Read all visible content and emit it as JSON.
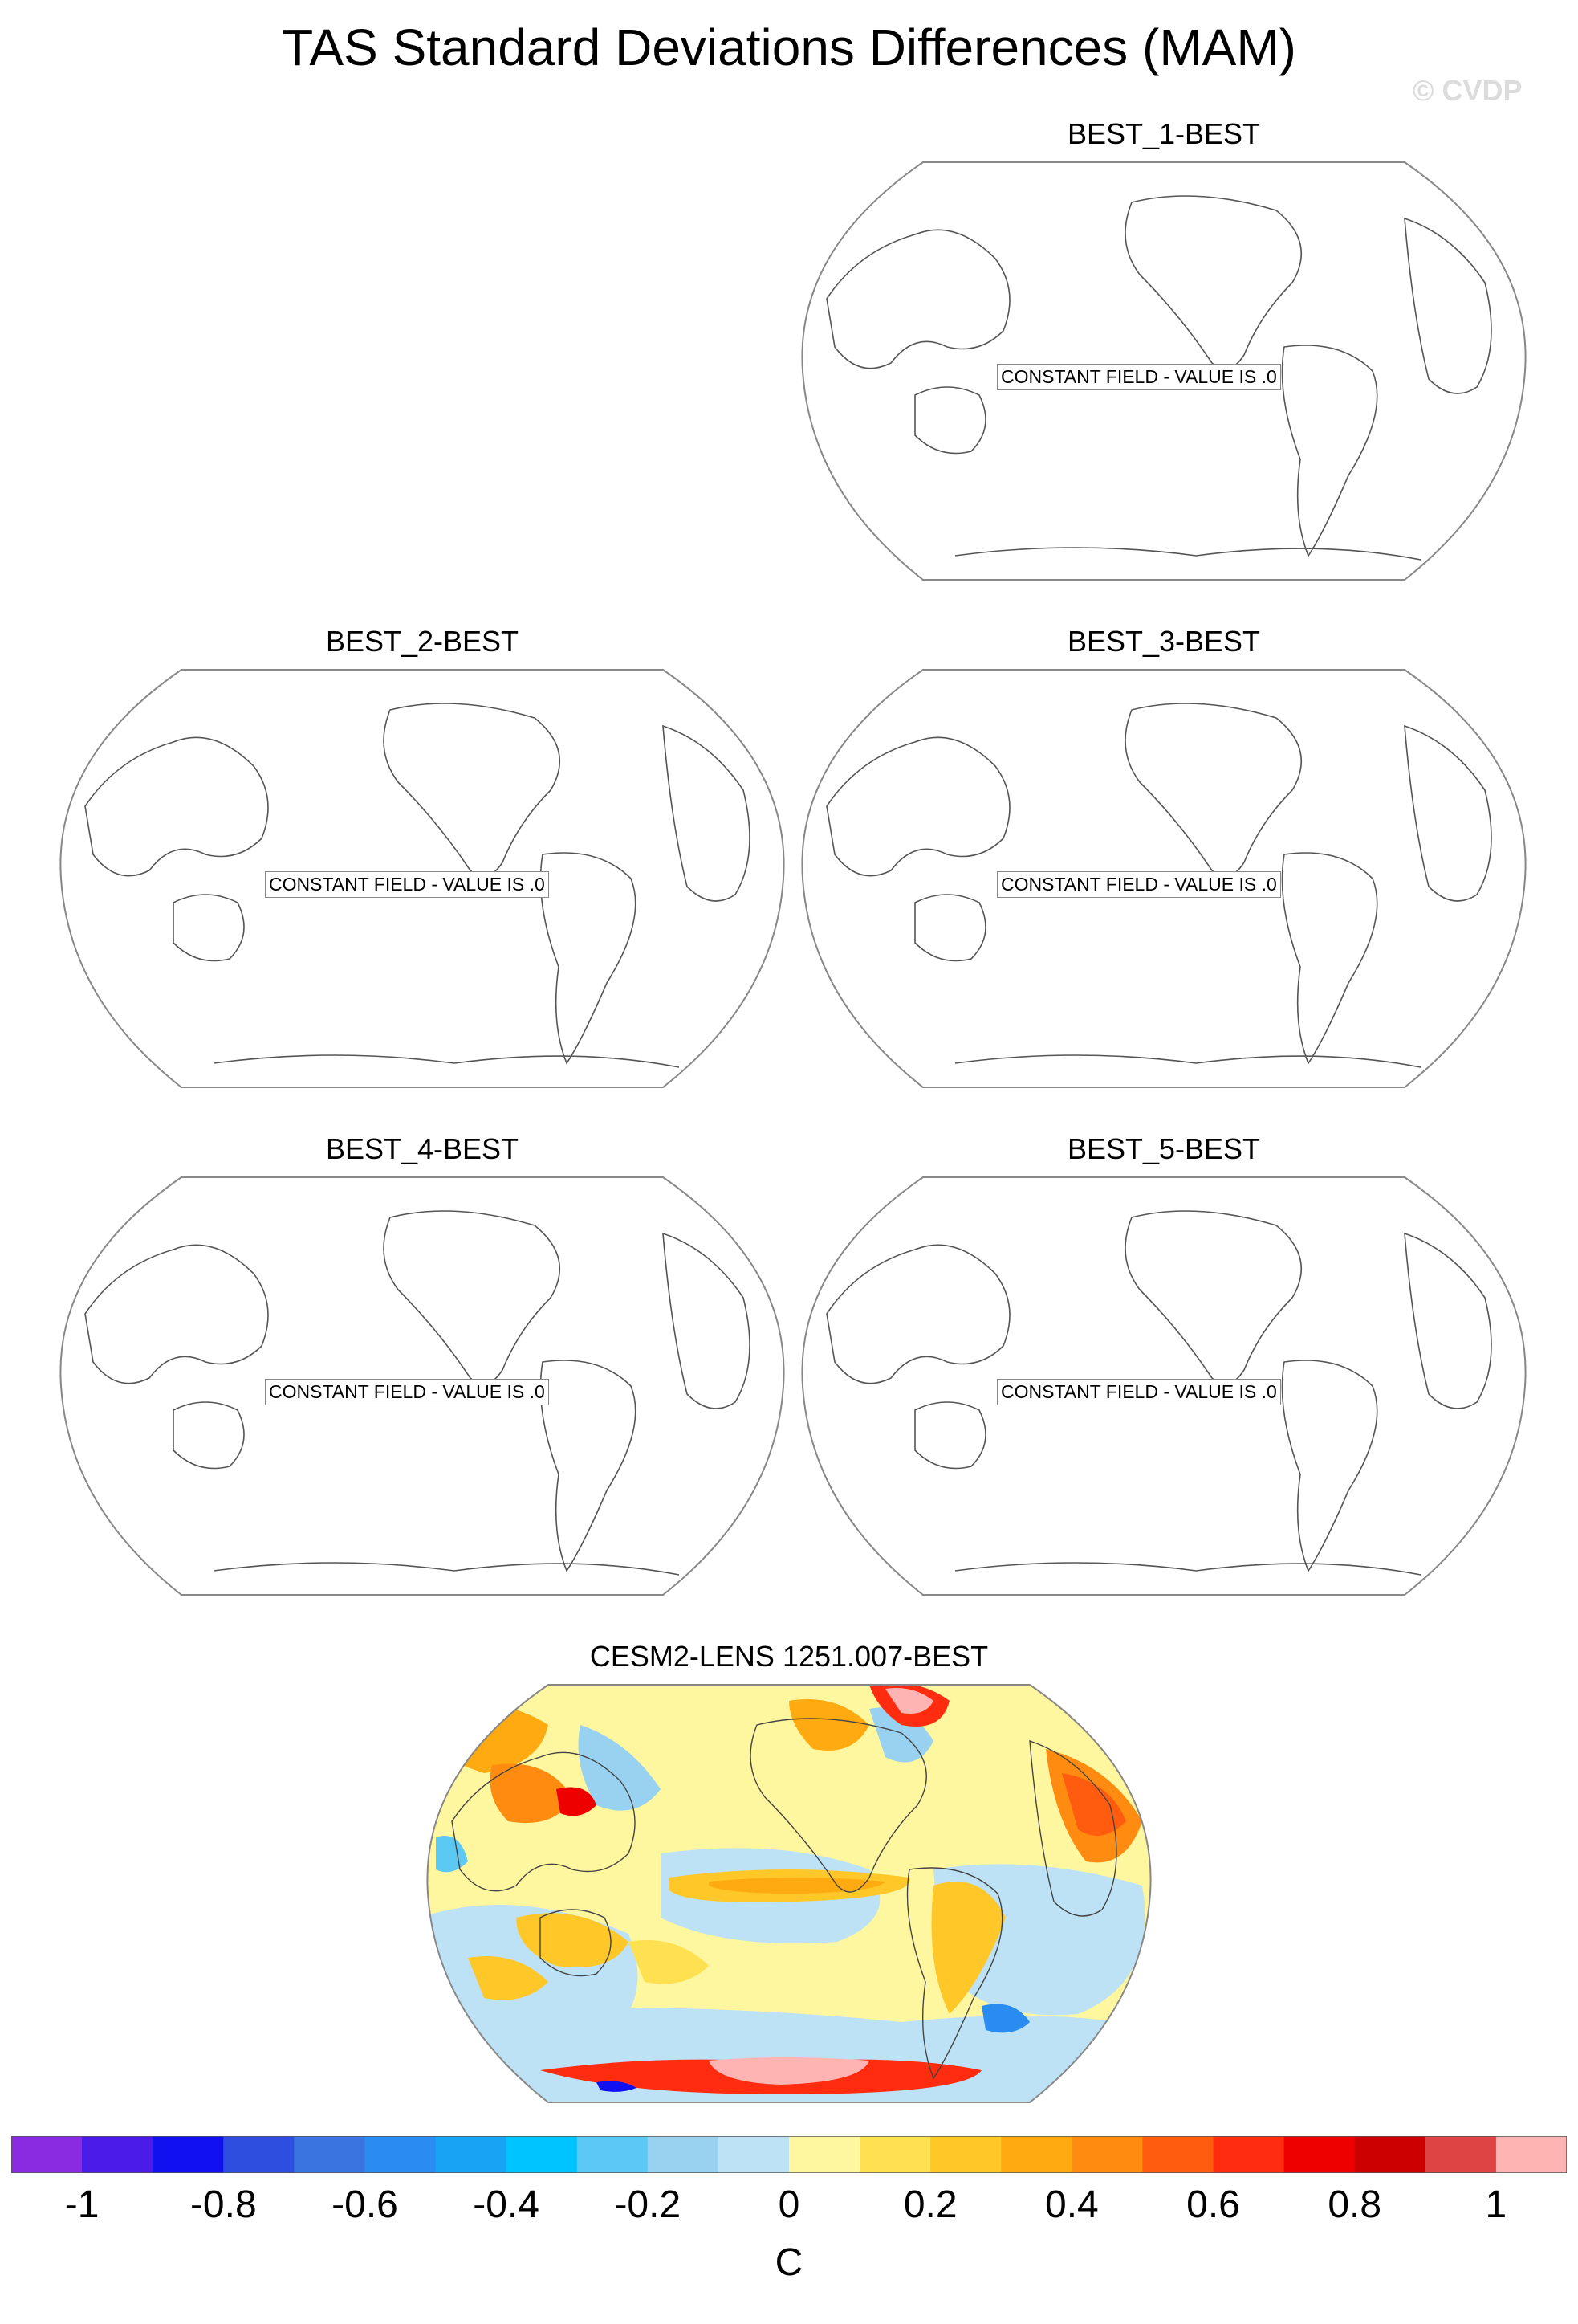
{
  "title": "TAS Standard Deviations Differences (MAM)",
  "watermark": "© CVDP",
  "panels": [
    {
      "label": "BEST_1-BEST",
      "message": "CONSTANT FIELD - VALUE IS .0"
    },
    {
      "label": "BEST_2-BEST",
      "message": "CONSTANT FIELD - VALUE IS .0"
    },
    {
      "label": "BEST_3-BEST",
      "message": "CONSTANT FIELD - VALUE IS .0"
    },
    {
      "label": "BEST_4-BEST",
      "message": "CONSTANT FIELD - VALUE IS .0"
    },
    {
      "label": "BEST_5-BEST",
      "message": "CONSTANT FIELD - VALUE IS .0"
    },
    {
      "label": "CESM2-LENS 1251.007-BEST"
    }
  ],
  "colorbar": {
    "colors": [
      "#8a2be2",
      "#4b1be8",
      "#1010f0",
      "#2e4ee0",
      "#3a74e0",
      "#2a8cf0",
      "#18a4f4",
      "#00c4ff",
      "#5cc8f4",
      "#98d2f0",
      "#bde2f6",
      "#fff6a0",
      "#ffe050",
      "#ffc828",
      "#ffaa10",
      "#ff8c10",
      "#ff5c10",
      "#ff2c10",
      "#ee0000",
      "#cc0000",
      "#dd4444",
      "#ffb4b4"
    ],
    "tick_labels": [
      "-1",
      "-0.8",
      "-0.6",
      "-0.4",
      "-0.2",
      "0",
      "0.2",
      "0.4",
      "0.6",
      "0.8",
      "1"
    ],
    "units": "C"
  }
}
